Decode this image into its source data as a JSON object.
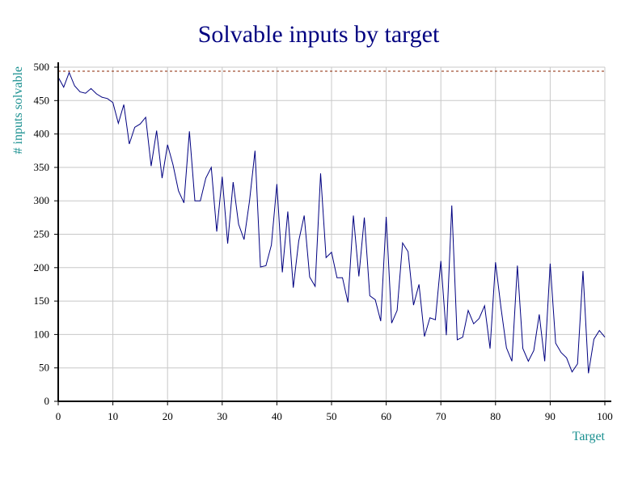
{
  "chart_data": {
    "type": "line",
    "title": "Solvable inputs by target",
    "xlabel": "Target",
    "ylabel": "# inputs solvable",
    "xlim": [
      0,
      100
    ],
    "ylim": [
      0,
      500
    ],
    "x_ticks": [
      0,
      10,
      20,
      30,
      40,
      50,
      60,
      70,
      80,
      90,
      100
    ],
    "y_ticks": [
      0,
      50,
      100,
      150,
      200,
      250,
      300,
      350,
      400,
      450,
      500
    ],
    "grid": true,
    "reference_line": 494,
    "colors": {
      "series": "#000080",
      "reference": "#8b2500",
      "title": "#000080",
      "axis_title": "#1a9090"
    },
    "series": [
      {
        "x": [
          0,
          1,
          2,
          3,
          4,
          5,
          6,
          7,
          8,
          9,
          10,
          11,
          12,
          13,
          14,
          15,
          16,
          17,
          18,
          19,
          20,
          21,
          22,
          23,
          24,
          25,
          26,
          27,
          28,
          29,
          30,
          31,
          32,
          33,
          34,
          35,
          36,
          37,
          38,
          39,
          40,
          41,
          42,
          43,
          44,
          45,
          46,
          47,
          48,
          49,
          50,
          51,
          52,
          53,
          54,
          55,
          56,
          57,
          58,
          59,
          60,
          61,
          62,
          63,
          64,
          65,
          66,
          67,
          68,
          69,
          70,
          71,
          72,
          73,
          74,
          75,
          76,
          77,
          78,
          79,
          80,
          81,
          82,
          83,
          84,
          85,
          86,
          87,
          88,
          89,
          90,
          91,
          92,
          93,
          94,
          95,
          96,
          97,
          98,
          99,
          100
        ],
        "values": [
          485,
          470,
          492,
          472,
          463,
          461,
          468,
          460,
          455,
          453,
          447,
          416,
          444,
          385,
          410,
          415,
          425,
          352,
          405,
          334,
          384,
          354,
          315,
          297,
          404,
          300,
          300,
          334,
          350,
          254,
          336,
          236,
          328,
          265,
          242,
          300,
          375,
          201,
          203,
          234,
          325,
          193,
          284,
          170,
          240,
          278,
          186,
          172,
          341,
          215,
          223,
          185,
          185,
          148,
          278,
          187,
          275,
          158,
          152,
          120,
          276,
          117,
          136,
          237,
          224,
          144,
          175,
          97,
          125,
          122,
          210,
          99,
          293,
          92,
          96,
          136,
          116,
          124,
          143,
          79,
          208,
          140,
          80,
          60,
          203,
          79,
          60,
          76,
          130,
          60,
          206,
          87,
          73,
          65,
          44,
          56,
          195,
          42,
          93,
          106,
          96
        ]
      }
    ]
  }
}
